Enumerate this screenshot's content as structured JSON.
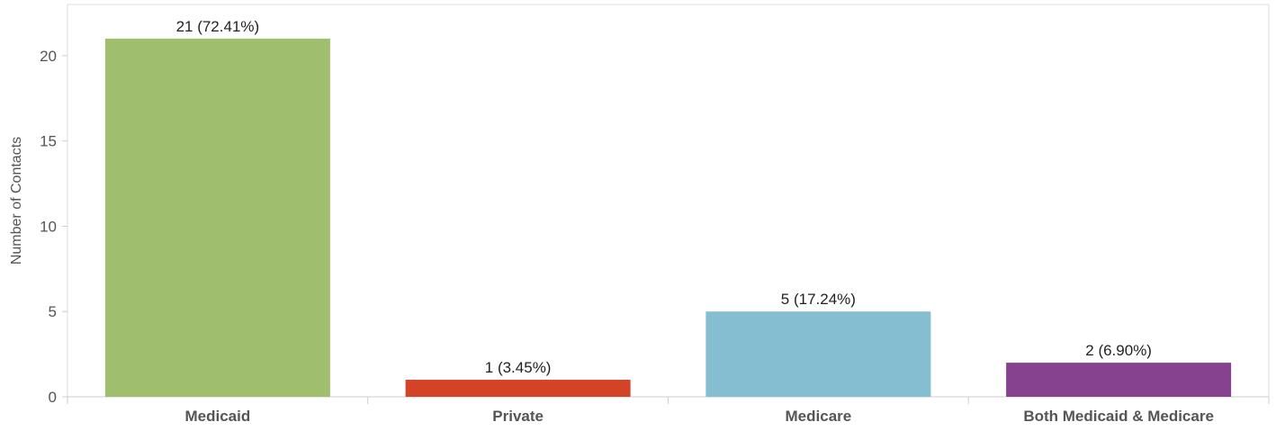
{
  "chart_data": {
    "type": "bar",
    "ylabel": "Number of Contacts",
    "ylim": [
      0,
      23
    ],
    "yticks": [
      0,
      5,
      10,
      15,
      20
    ],
    "grid": false,
    "categories": [
      "Medicaid",
      "Private",
      "Medicare",
      "Both Medicaid & Medicare"
    ],
    "values": [
      21,
      1,
      5,
      2
    ],
    "data_labels": [
      "21 (72.41%)",
      "1 (3.45%)",
      "5 (17.24%)",
      "2 (6.90%)"
    ],
    "colors": [
      "#a0bf6e",
      "#d54327",
      "#84bed0",
      "#86418f"
    ]
  }
}
